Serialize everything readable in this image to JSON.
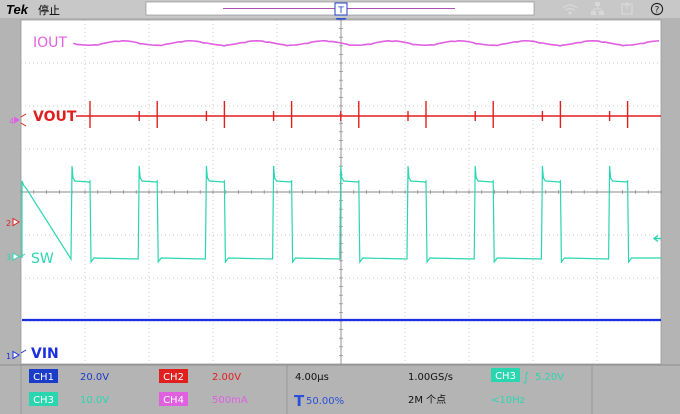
{
  "header": {
    "brand": "Tek",
    "status": "停止",
    "trigger_pos_marker": "T",
    "help_icon": "?",
    "icons": [
      "wifi-icon",
      "network-icon",
      "usb-icon",
      "help-icon"
    ]
  },
  "channels": {
    "iout": {
      "label": "IOUT",
      "color": "#e060e0"
    },
    "vout": {
      "label": "VOUT",
      "color": "#e01f1f",
      "marker": "4"
    },
    "sw": {
      "label": "SW",
      "color": "#2ad6b0",
      "marker": "3"
    },
    "vin": {
      "label": "VIN",
      "color": "#1a2fe0",
      "marker": "1"
    },
    "ch2_marker": "2"
  },
  "bottom_bar": {
    "ch1": {
      "name": "CH1",
      "value": "20.0V",
      "color": "#1a3cc8"
    },
    "ch2": {
      "name": "CH2",
      "value": "2.00V",
      "color": "#e01f1f"
    },
    "ch3": {
      "name": "CH3",
      "value": "10.0V",
      "color": "#2ad6b0"
    },
    "ch4": {
      "name": "CH4",
      "value": "500mA",
      "color": "#e060e0"
    },
    "timebase": "4.00µs",
    "trigger_pos_symbol": "T",
    "trigger_pos": "50.00%",
    "sample_rate": "1.00GS/s",
    "record_length": "2M 个点",
    "trig_source": "CH3",
    "trig_slope_symbol": "∫",
    "trig_level": "5.20V",
    "trig_freq": "<10Hz"
  }
}
